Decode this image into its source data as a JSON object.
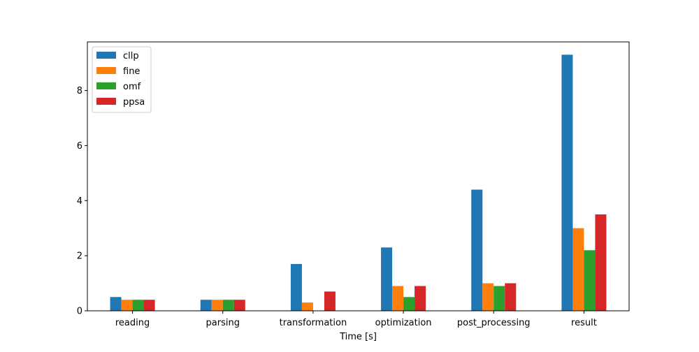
{
  "chart_data": {
    "type": "bar",
    "title": "",
    "xlabel": "Time [s]",
    "ylabel": "",
    "categories": [
      "reading",
      "parsing",
      "transformation",
      "optimization",
      "post_processing",
      "result"
    ],
    "series": [
      {
        "name": "cllp",
        "color": "#1f77b4",
        "values": [
          0.5,
          0.4,
          1.7,
          2.3,
          4.4,
          9.3
        ]
      },
      {
        "name": "fine",
        "color": "#ff7f0e",
        "values": [
          0.4,
          0.4,
          0.3,
          0.9,
          1.0,
          3.0
        ]
      },
      {
        "name": "omf",
        "color": "#2ca02c",
        "values": [
          0.4,
          0.4,
          0.0,
          0.5,
          0.9,
          2.2
        ]
      },
      {
        "name": "ppsa",
        "color": "#d62728",
        "values": [
          0.4,
          0.4,
          0.7,
          0.9,
          1.0,
          3.5
        ]
      }
    ],
    "ylim": [
      0,
      9.765
    ],
    "yticks": [
      0,
      2,
      4,
      6,
      8
    ],
    "grid": false,
    "legend": "top-left"
  }
}
